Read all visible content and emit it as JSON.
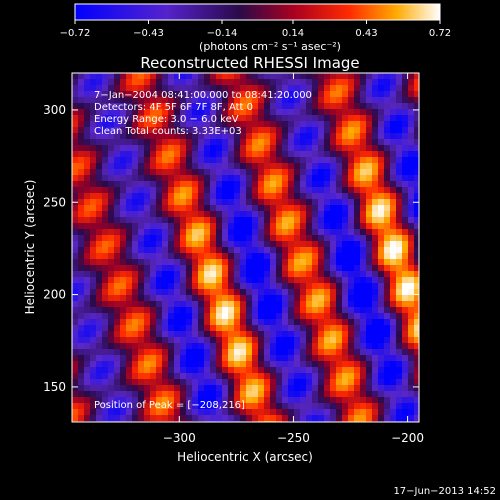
{
  "chart_data": {
    "type": "heatmap",
    "title": "Reconstructed RHESSI Image",
    "xlabel": "Heliocentric X (arcsec)",
    "ylabel": "Heliocentric Y (arcsec)",
    "xlim": [
      -347,
      -195
    ],
    "ylim": [
      131,
      320
    ],
    "x_ticks": [
      -300,
      -250,
      -200
    ],
    "x_tick_labels": [
      "−300",
      "−250",
      "−200"
    ],
    "y_ticks": [
      150,
      200,
      250,
      300
    ],
    "y_tick_labels": [
      "150",
      "200",
      "250",
      "300"
    ],
    "colorbar": {
      "range": [
        -0.72,
        0.72
      ],
      "ticks": [
        -0.72,
        -0.43,
        -0.14,
        0.14,
        0.43,
        0.72
      ],
      "tick_labels": [
        "−0.72",
        "−0.43",
        "−0.14",
        "0.14",
        "0.43",
        "0.72"
      ],
      "units_label": "(photons cm⁻² s⁻¹ asec⁻²)"
    },
    "annotations": [
      "7−Jan−2004 08:41:00.000 to 08:41:20.000",
      "Detectors: 4F 5F 6F 7F 8F, Att 0",
      "Energy Range: 3.0 − 6.0 keV",
      "Clean    Total counts: 3.33E+03"
    ],
    "peak_label": "Position of Peak = [−208,216]",
    "peak": [
      -208,
      216
    ],
    "footer_timestamp": "17−Jun−2013 14:52",
    "colors": {
      "background": "#000000",
      "negative": "#0000ff",
      "neutral": "#2a0a4a",
      "positive": "#ff2a00",
      "max": "#ffffff"
    }
  }
}
